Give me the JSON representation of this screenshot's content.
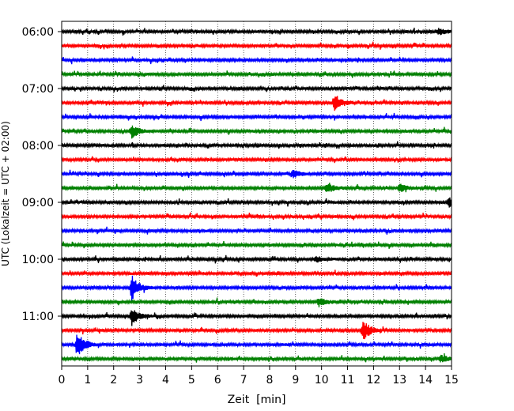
{
  "chart_data": {
    "type": "line",
    "title": "",
    "xlabel": "Zeit  [min]",
    "ylabel": "UTC (Lokalzeit = UTC + 02:00)",
    "xlim": [
      0,
      15
    ],
    "x_ticks": [
      "0",
      "1",
      "2",
      "3",
      "4",
      "5",
      "6",
      "7",
      "8",
      "9",
      "10",
      "11",
      "12",
      "13",
      "14",
      "15"
    ],
    "y_ticks": [
      "06:00",
      "07:00",
      "08:00",
      "09:00",
      "10:00",
      "11:00"
    ],
    "grid": "vertical dotted",
    "trace_colors": [
      "#000000",
      "#ff0000",
      "#0000ff",
      "#008000"
    ],
    "traces": [
      {
        "start": "06:00",
        "events": [
          {
            "minute": 14.5,
            "amplitude": 0.35
          }
        ]
      },
      {
        "start": "06:15",
        "events": []
      },
      {
        "start": "06:30",
        "events": []
      },
      {
        "start": "06:45",
        "events": []
      },
      {
        "start": "07:00",
        "events": []
      },
      {
        "start": "07:15",
        "events": [
          {
            "minute": 10.5,
            "amplitude": 0.9
          }
        ]
      },
      {
        "start": "07:30",
        "events": []
      },
      {
        "start": "07:45",
        "events": [
          {
            "minute": 2.7,
            "amplitude": 0.7
          }
        ]
      },
      {
        "start": "08:00",
        "events": []
      },
      {
        "start": "08:15",
        "events": []
      },
      {
        "start": "08:30",
        "events": [
          {
            "minute": 8.9,
            "amplitude": 0.4
          }
        ]
      },
      {
        "start": "08:45",
        "events": [
          {
            "minute": 10.2,
            "amplitude": 0.5
          },
          {
            "minute": 13.0,
            "amplitude": 0.4
          }
        ]
      },
      {
        "start": "09:00",
        "events": [
          {
            "minute": 14.9,
            "amplitude": 0.5
          }
        ]
      },
      {
        "start": "09:15",
        "events": []
      },
      {
        "start": "09:30",
        "events": []
      },
      {
        "start": "09:45",
        "events": []
      },
      {
        "start": "10:00",
        "events": [
          {
            "minute": 9.8,
            "amplitude": 0.3
          }
        ]
      },
      {
        "start": "10:15",
        "events": []
      },
      {
        "start": "10:30",
        "events": [
          {
            "minute": 2.7,
            "amplitude": 1.3
          }
        ]
      },
      {
        "start": "10:45",
        "events": [
          {
            "minute": 9.9,
            "amplitude": 0.4
          }
        ]
      },
      {
        "start": "11:00",
        "events": [
          {
            "minute": 2.7,
            "amplitude": 0.9
          }
        ]
      },
      {
        "start": "11:15",
        "events": [
          {
            "minute": 11.6,
            "amplitude": 1.1
          }
        ]
      },
      {
        "start": "11:30",
        "events": [
          {
            "minute": 0.6,
            "amplitude": 1.3
          }
        ]
      },
      {
        "start": "11:45",
        "events": [
          {
            "minute": 14.6,
            "amplitude": 0.35
          }
        ]
      }
    ]
  }
}
